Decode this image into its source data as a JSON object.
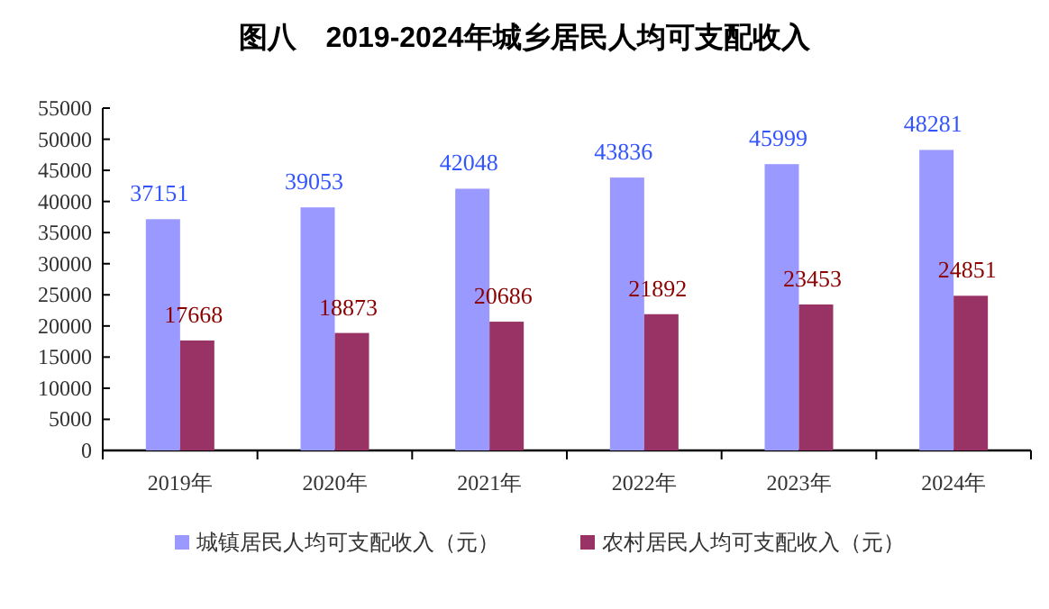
{
  "chart_data": {
    "type": "bar",
    "title": "图八　2019-2024年城乡居民人均可支配收入",
    "categories": [
      "2019年",
      "2020年",
      "2021年",
      "2022年",
      "2023年",
      "2024年"
    ],
    "series": [
      {
        "name": "城镇居民人均可支配收入（元）",
        "color": "#9999ff",
        "values": [
          37151,
          39053,
          42048,
          43836,
          45999,
          48281
        ]
      },
      {
        "name": "农村居民人均可支配收入（元）",
        "color": "#993366",
        "values": [
          17668,
          18873,
          20686,
          21892,
          23453,
          24851
        ]
      }
    ],
    "ylim": [
      0,
      55000
    ],
    "yticks": [
      0,
      5000,
      10000,
      15000,
      20000,
      25000,
      30000,
      35000,
      40000,
      45000,
      50000,
      55000
    ],
    "data_labels": true,
    "legend": "bottom",
    "grid": false
  }
}
